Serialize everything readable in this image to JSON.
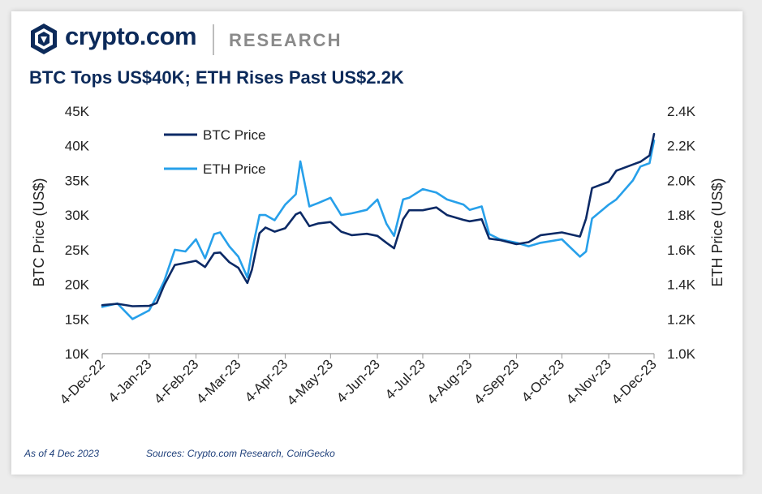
{
  "header": {
    "brand": "crypto.com",
    "section": "RESEARCH",
    "title": "BTC Tops US$40K; ETH Rises Past US$2.2K"
  },
  "footer": {
    "as_of": "As of 4 Dec 2023",
    "sources": "Sources: Crypto.com Research, CoinGecko"
  },
  "colors": {
    "btc": "#0c2a66",
    "eth": "#27a0ea",
    "title": "#0c2a5a"
  },
  "chart_data": {
    "type": "line",
    "ylabel_left": "BTC Price (US$)",
    "ylabel_right": "ETH Price (US$)",
    "ylim_left": [
      10000,
      45000
    ],
    "ylim_right": [
      1000,
      2400
    ],
    "yticks_left": [
      "10K",
      "15K",
      "20K",
      "25K",
      "30K",
      "35K",
      "40K",
      "45K"
    ],
    "yticks_right": [
      "1.0K",
      "1.2K",
      "1.4K",
      "1.6K",
      "1.8K",
      "2.0K",
      "2.2K",
      "2.4K"
    ],
    "xlim": [
      "2022-12-04",
      "2023-12-04"
    ],
    "xticks": [
      "4-Dec-22",
      "4-Jan-23",
      "4-Feb-23",
      "4-Mar-23",
      "4-Apr-23",
      "4-May-23",
      "4-Jun-23",
      "4-Jul-23",
      "4-Aug-23",
      "4-Sep-23",
      "4-Oct-23",
      "4-Nov-23",
      "4-Dec-23"
    ],
    "legend_position": "top-left",
    "grid": false,
    "series": [
      {
        "name": "BTC Price",
        "axis": "left",
        "x": [
          "2022-12-04",
          "2022-12-14",
          "2022-12-24",
          "2023-01-04",
          "2023-01-09",
          "2023-01-14",
          "2023-01-21",
          "2023-01-28",
          "2023-02-04",
          "2023-02-10",
          "2023-02-16",
          "2023-02-20",
          "2023-02-26",
          "2023-03-04",
          "2023-03-10",
          "2023-03-13",
          "2023-03-18",
          "2023-03-22",
          "2023-03-28",
          "2023-04-04",
          "2023-04-11",
          "2023-04-14",
          "2023-04-20",
          "2023-04-26",
          "2023-05-04",
          "2023-05-11",
          "2023-05-18",
          "2023-05-28",
          "2023-06-04",
          "2023-06-10",
          "2023-06-15",
          "2023-06-21",
          "2023-06-25",
          "2023-07-04",
          "2023-07-13",
          "2023-07-20",
          "2023-07-31",
          "2023-08-04",
          "2023-08-12",
          "2023-08-17",
          "2023-08-24",
          "2023-09-04",
          "2023-09-12",
          "2023-09-20",
          "2023-10-04",
          "2023-10-16",
          "2023-10-20",
          "2023-10-24",
          "2023-11-04",
          "2023-11-09",
          "2023-11-20",
          "2023-11-25",
          "2023-12-01",
          "2023-12-04"
        ],
        "values": [
          17000,
          17200,
          16850,
          16900,
          17300,
          19900,
          22800,
          23100,
          23400,
          22500,
          24500,
          24600,
          23200,
          22400,
          20200,
          22100,
          27400,
          28200,
          27600,
          28100,
          30100,
          30400,
          28400,
          28800,
          29000,
          27600,
          27100,
          27300,
          27000,
          26000,
          25200,
          29400,
          30700,
          30700,
          31100,
          30000,
          29300,
          29100,
          29400,
          26600,
          26400,
          25800,
          26100,
          27100,
          27500,
          26900,
          29500,
          33900,
          34800,
          36400,
          37300,
          37700,
          38600,
          41700
        ]
      },
      {
        "name": "ETH Price",
        "axis": "right",
        "x": [
          "2022-12-04",
          "2022-12-14",
          "2022-12-24",
          "2023-01-04",
          "2023-01-09",
          "2023-01-14",
          "2023-01-21",
          "2023-01-28",
          "2023-02-04",
          "2023-02-10",
          "2023-02-16",
          "2023-02-20",
          "2023-02-26",
          "2023-03-04",
          "2023-03-10",
          "2023-03-13",
          "2023-03-18",
          "2023-03-22",
          "2023-03-28",
          "2023-04-04",
          "2023-04-11",
          "2023-04-14",
          "2023-04-20",
          "2023-04-26",
          "2023-05-04",
          "2023-05-11",
          "2023-05-18",
          "2023-05-28",
          "2023-06-04",
          "2023-06-10",
          "2023-06-15",
          "2023-06-21",
          "2023-06-25",
          "2023-07-04",
          "2023-07-13",
          "2023-07-20",
          "2023-07-31",
          "2023-08-04",
          "2023-08-12",
          "2023-08-17",
          "2023-08-24",
          "2023-09-04",
          "2023-09-12",
          "2023-09-20",
          "2023-10-04",
          "2023-10-16",
          "2023-10-20",
          "2023-10-24",
          "2023-11-04",
          "2023-11-09",
          "2023-11-20",
          "2023-11-25",
          "2023-12-01",
          "2023-12-04"
        ],
        "values": [
          1270,
          1290,
          1200,
          1250,
          1330,
          1420,
          1600,
          1590,
          1660,
          1550,
          1690,
          1700,
          1620,
          1560,
          1440,
          1590,
          1800,
          1800,
          1770,
          1860,
          1920,
          2110,
          1850,
          1870,
          1900,
          1800,
          1810,
          1830,
          1890,
          1750,
          1680,
          1890,
          1900,
          1950,
          1930,
          1890,
          1860,
          1830,
          1850,
          1690,
          1660,
          1640,
          1620,
          1640,
          1660,
          1560,
          1590,
          1780,
          1860,
          1890,
          2000,
          2080,
          2100,
          2230
        ]
      }
    ]
  }
}
